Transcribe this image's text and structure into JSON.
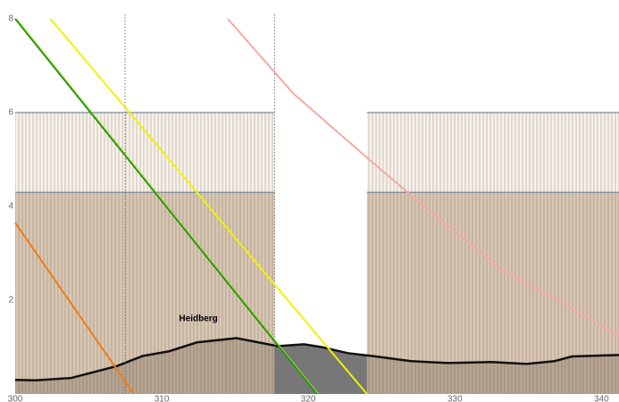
{
  "chart_data": {
    "type": "line",
    "xlim": [
      300,
      341.2
    ],
    "ylim": [
      0,
      8.4
    ],
    "xticks": [
      300,
      310,
      320,
      330,
      340
    ],
    "yticks": [
      2,
      4,
      6,
      8
    ],
    "airspaces": [
      {
        "xrange": [
          300,
          317.7
        ],
        "yrange": [
          4.3,
          6
        ],
        "color": "#f4ede7"
      },
      {
        "xrange": [
          324.0,
          341.2
        ],
        "yrange": [
          4.3,
          6
        ],
        "color": "#f4ede7"
      },
      {
        "xrange": [
          300,
          317.7
        ],
        "yrange": [
          0,
          4.3
        ],
        "color": "#c9b59c"
      },
      {
        "xrange": [
          324.0,
          341.2
        ],
        "yrange": [
          0,
          4.3
        ],
        "color": "#c9b59c"
      }
    ],
    "vlines": [
      307.5,
      317.7
    ],
    "terrain": {
      "color": "#777777",
      "x": [
        300,
        301.4,
        303.8,
        306.9,
        308.7,
        310.5,
        312.4,
        315.1,
        316.6,
        317.9,
        319.7,
        320.9,
        322.7,
        324.6,
        327.0,
        329.5,
        332.5,
        334.9,
        336.8,
        338.0,
        341.2
      ],
      "values": [
        0.3,
        0.29,
        0.34,
        0.59,
        0.81,
        0.91,
        1.1,
        1.19,
        1.1,
        1.02,
        1.06,
        1.0,
        0.87,
        0.8,
        0.7,
        0.66,
        0.68,
        0.64,
        0.7,
        0.8,
        0.83
      ]
    },
    "series": [
      {
        "color": "#f2f200",
        "x": [
          302.4,
          324.0
        ],
        "values": [
          8,
          0
        ]
      },
      {
        "color": "#2a8a1a",
        "x": [
          300,
          320.6
        ],
        "values": [
          8,
          0
        ]
      },
      {
        "color": "#f07a1a",
        "x": [
          300,
          308.1
        ],
        "values": [
          3.65,
          0
        ]
      },
      {
        "color": "#f4aaa2",
        "x": [
          314.5,
          319.0,
          324.0,
          326.7,
          333.1,
          341.2
        ],
        "values": [
          8,
          6.4,
          5.04,
          4.32,
          2.67,
          1.25
        ]
      }
    ],
    "annotations": [
      {
        "text": "Heidberg",
        "x": 312.5,
        "y": 1.6
      }
    ]
  }
}
